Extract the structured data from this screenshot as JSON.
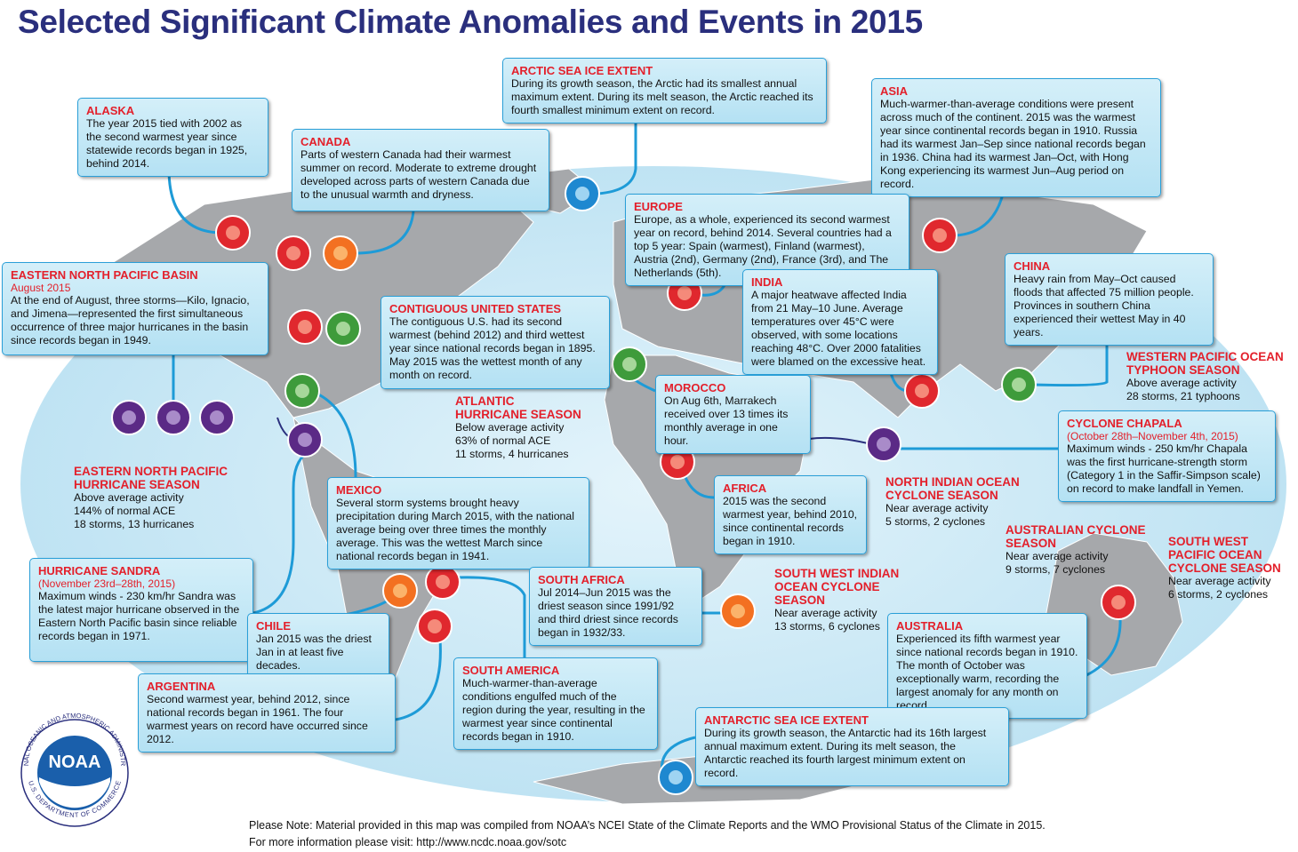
{
  "title": "Selected Significant Climate Anomalies and Events in 2015",
  "boxes": [
    {
      "title": "ARCTIC SEA ICE EXTENT",
      "text": "During its growth season, the Arctic had its smallest annual maximum extent. During its melt season, the Arctic reached its fourth smallest minimum extent on record."
    },
    {
      "title": "ALASKA",
      "text": "The year 2015 tied with 2002 as the second warmest year since statewide records began in 1925, behind 2014."
    },
    {
      "title": "CANADA",
      "text": "Parts of western Canada had their warmest summer on record. Moderate to extreme drought developed across parts of western Canada due to the unusual warmth and dryness."
    },
    {
      "title": "ASIA",
      "text": "Much-warmer-than-average conditions were present across much of the continent. 2015 was the warmest year since continental records began in 1910. Russia had its warmest Jan–Sep since national records began in 1936. China had its warmest Jan–Oct, with Hong Kong experiencing its warmest Jun–Aug period on record."
    },
    {
      "title": "EUROPE",
      "text": "Europe, as a whole, experienced its second warmest year on record, behind 2014. Several countries had a top 5 year: Spain (warmest), Finland (warmest), Austria (2nd), Germany (2nd), France (3rd), and The Netherlands (5th)."
    },
    {
      "title": "EASTERN NORTH PACIFIC BASIN",
      "subtitle": "August 2015",
      "text": "At the end of August, three storms—Kilo, Ignacio, and Jimena—represented the first simultaneous occurrence of three major hurricanes in the basin since records began in 1949."
    },
    {
      "title": "CONTIGUOUS UNITED STATES",
      "text": "The contiguous U.S. had its second warmest (behind 2012) and third wettest year since national records began in 1895. May 2015 was the wettest month of any month on record."
    },
    {
      "title": "INDIA",
      "text": "A major heatwave affected India from 21 May–10 June. Average temperatures over 45°C were observed, with some locations reaching 48°C. Over 2000 fatalities were blamed on the excessive heat."
    },
    {
      "title": "CHINA",
      "text": "Heavy rain from May–Oct caused floods that affected 75 million people. Provinces in southern China experienced their wettest May in 40 years."
    },
    {
      "title": "MOROCCO",
      "text": "On Aug 6th, Marrakech received over 13 times its monthly average in one hour."
    },
    {
      "title": "CYCLONE CHAPALA",
      "subtitle": "(October 28th–November 4th, 2015)",
      "text": "Maximum winds - 250 km/hr Chapala was the first hurricane-strength storm (Category 1 in the Saffir-Simpson scale) on record to make landfall in Yemen."
    },
    {
      "title": "MEXICO",
      "text": "Several storm systems brought heavy precipitation during March 2015, with the national average being over three times the monthly average. This was the wettest March since national records began in 1941."
    },
    {
      "title": "AFRICA",
      "text": "2015 was the second warmest year, behind 2010, since continental records began in 1910."
    },
    {
      "title": "HURRICANE SANDRA",
      "subtitle": "(November 23rd–28th, 2015)",
      "text": "Maximum winds - 230 km/hr Sandra was the latest major hurricane observed in the Eastern North Pacific basin since reliable records began in 1971."
    },
    {
      "title": "CHILE",
      "text": "Jan 2015 was the driest Jan in at least five decades."
    },
    {
      "title": "SOUTH AFRICA",
      "text": "Jul 2014–Jun 2015 was the driest season since 1991/92 and third driest since records began in 1932/33."
    },
    {
      "title": "ARGENTINA",
      "text": "Second warmest year, behind 2012, since national records began in 1961. The four warmest years on record have occurred since 2012."
    },
    {
      "title": "SOUTH AMERICA",
      "text": "Much-warmer-than-average conditions engulfed much of the region during the year, resulting in the warmest year since continental records began in 1910."
    },
    {
      "title": "AUSTRALIA",
      "text": "Experienced its fifth warmest year since national records began in 1910. The month of October was exceptionally warm, recording the largest anomaly for any month on record."
    },
    {
      "title": "ANTARCTIC SEA ICE EXTENT",
      "text": "During its growth season, the Antarctic had its 16th largest annual maximum extent. During its melt season, the Antarctic reached its fourth largest minimum extent on record."
    }
  ],
  "labels": [
    {
      "title": "ATLANTIC HURRICANE SEASON",
      "lines": [
        "Below average activity",
        "63% of normal ACE",
        "11 storms, 4 hurricanes"
      ]
    },
    {
      "title": "EASTERN NORTH PACIFIC HURRICANE SEASON",
      "lines": [
        "Above average activity",
        "144% of normal ACE",
        "18 storms, 13 hurricanes"
      ]
    },
    {
      "title": "WESTERN PACIFIC OCEAN TYPHOON SEASON",
      "lines": [
        "Above average activity",
        "28 storms, 21 typhoons"
      ]
    },
    {
      "title": "NORTH INDIAN OCEAN CYCLONE SEASON",
      "lines": [
        "Near average activity",
        "5 storms, 2 cyclones"
      ]
    },
    {
      "title": "AUSTRALIAN CYCLONE SEASON",
      "lines": [
        "Near average activity",
        "9 storms, 7 cyclones"
      ]
    },
    {
      "title": "SOUTH WEST PACIFIC OCEAN CYCLONE SEASON",
      "lines": [
        "Near average activity",
        "6 storms, 2 cyclones"
      ]
    },
    {
      "title": "SOUTH WEST INDIAN OCEAN CYCLONE SEASON",
      "lines": [
        "Near average activity",
        "13 storms, 6 cyclones"
      ]
    }
  ],
  "footer": {
    "note": "Please Note: Material provided in this map was compiled from NOAA’s NCEI State of the Climate Reports and the WMO Provisional Status of the Climate in 2015.",
    "link": "For more information please visit: http://www.ncdc.noaa.gov/sotc"
  },
  "logo": {
    "name": "NOAA",
    "ring_top": "NATIONAL OCEANIC AND ATMOSPHERIC ADMINISTRATION",
    "ring_bottom": "U.S. DEPARTMENT OF COMMERCE"
  }
}
